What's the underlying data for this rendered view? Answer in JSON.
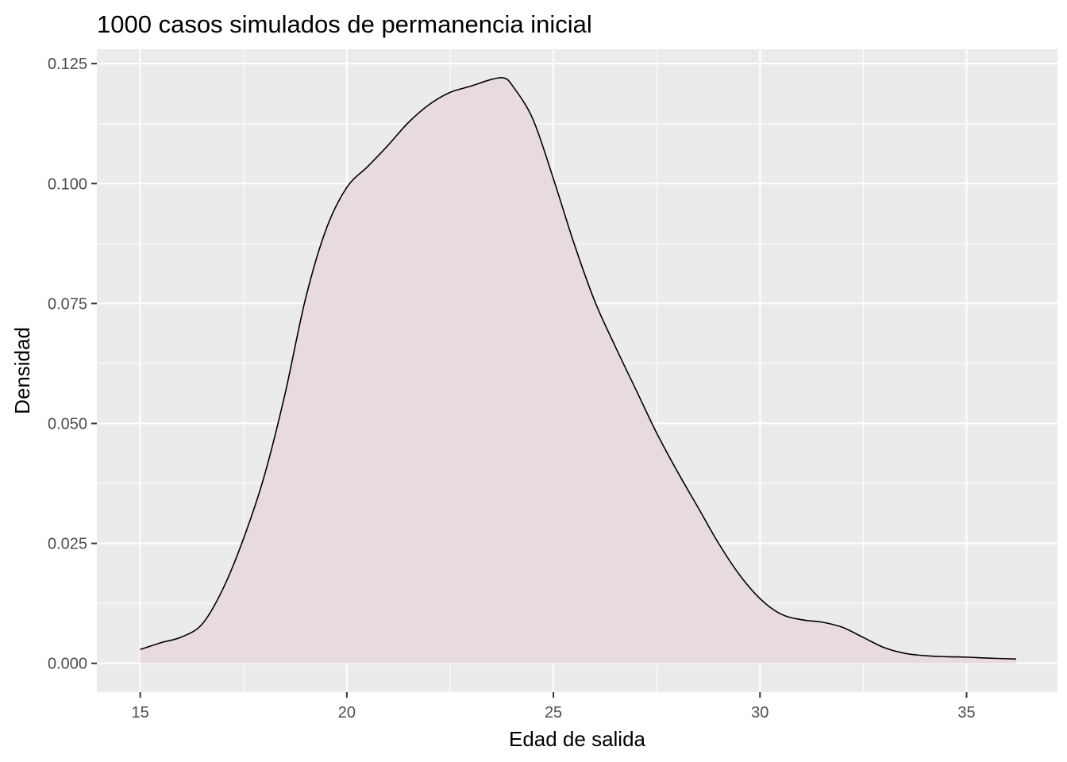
{
  "chart_data": {
    "type": "area",
    "title": "1000 casos simulados de permanencia inicial",
    "xlabel": "Edad de salida",
    "ylabel": "Densidad",
    "xlim": [
      13.95,
      37.2
    ],
    "ylim": [
      -0.006,
      0.128
    ],
    "x_ticks": [
      15,
      20,
      25,
      30,
      35
    ],
    "x_tick_labels": [
      "15",
      "20",
      "25",
      "30",
      "35"
    ],
    "y_ticks": [
      0.0,
      0.025,
      0.05,
      0.075,
      0.1,
      0.125
    ],
    "y_tick_labels": [
      "0.000",
      "0.025",
      "0.050",
      "0.075",
      "0.100",
      "0.125"
    ],
    "grid": true,
    "legend": "none",
    "colors": {
      "panel_background": "#ebebeb",
      "grid": "#ffffff",
      "fill": "#e8dbdf",
      "line": "#000000"
    },
    "series": [
      {
        "x": [
          15.0,
          15.5,
          16.0,
          16.5,
          17.0,
          17.5,
          18.0,
          18.5,
          19.0,
          19.5,
          20.0,
          20.5,
          21.0,
          21.5,
          22.0,
          22.5,
          23.0,
          23.5,
          23.8,
          24.0,
          24.5,
          25.0,
          25.5,
          26.0,
          26.5,
          27.0,
          27.5,
          28.0,
          28.5,
          29.0,
          29.5,
          30.0,
          30.5,
          31.0,
          31.5,
          32.0,
          32.5,
          33.0,
          33.5,
          34.0,
          34.5,
          35.0,
          35.5,
          36.2
        ],
        "y": [
          0.0029,
          0.0043,
          0.0055,
          0.0082,
          0.0155,
          0.026,
          0.039,
          0.056,
          0.076,
          0.0905,
          0.0992,
          0.1035,
          0.108,
          0.1128,
          0.1165,
          0.119,
          0.1203,
          0.1217,
          0.122,
          0.1205,
          0.1135,
          0.101,
          0.0875,
          0.0755,
          0.066,
          0.057,
          0.048,
          0.04,
          0.0325,
          0.025,
          0.0185,
          0.0135,
          0.0103,
          0.0091,
          0.0086,
          0.0075,
          0.0054,
          0.0033,
          0.0021,
          0.0016,
          0.0014,
          0.0013,
          0.0011,
          0.0009
        ]
      }
    ]
  }
}
